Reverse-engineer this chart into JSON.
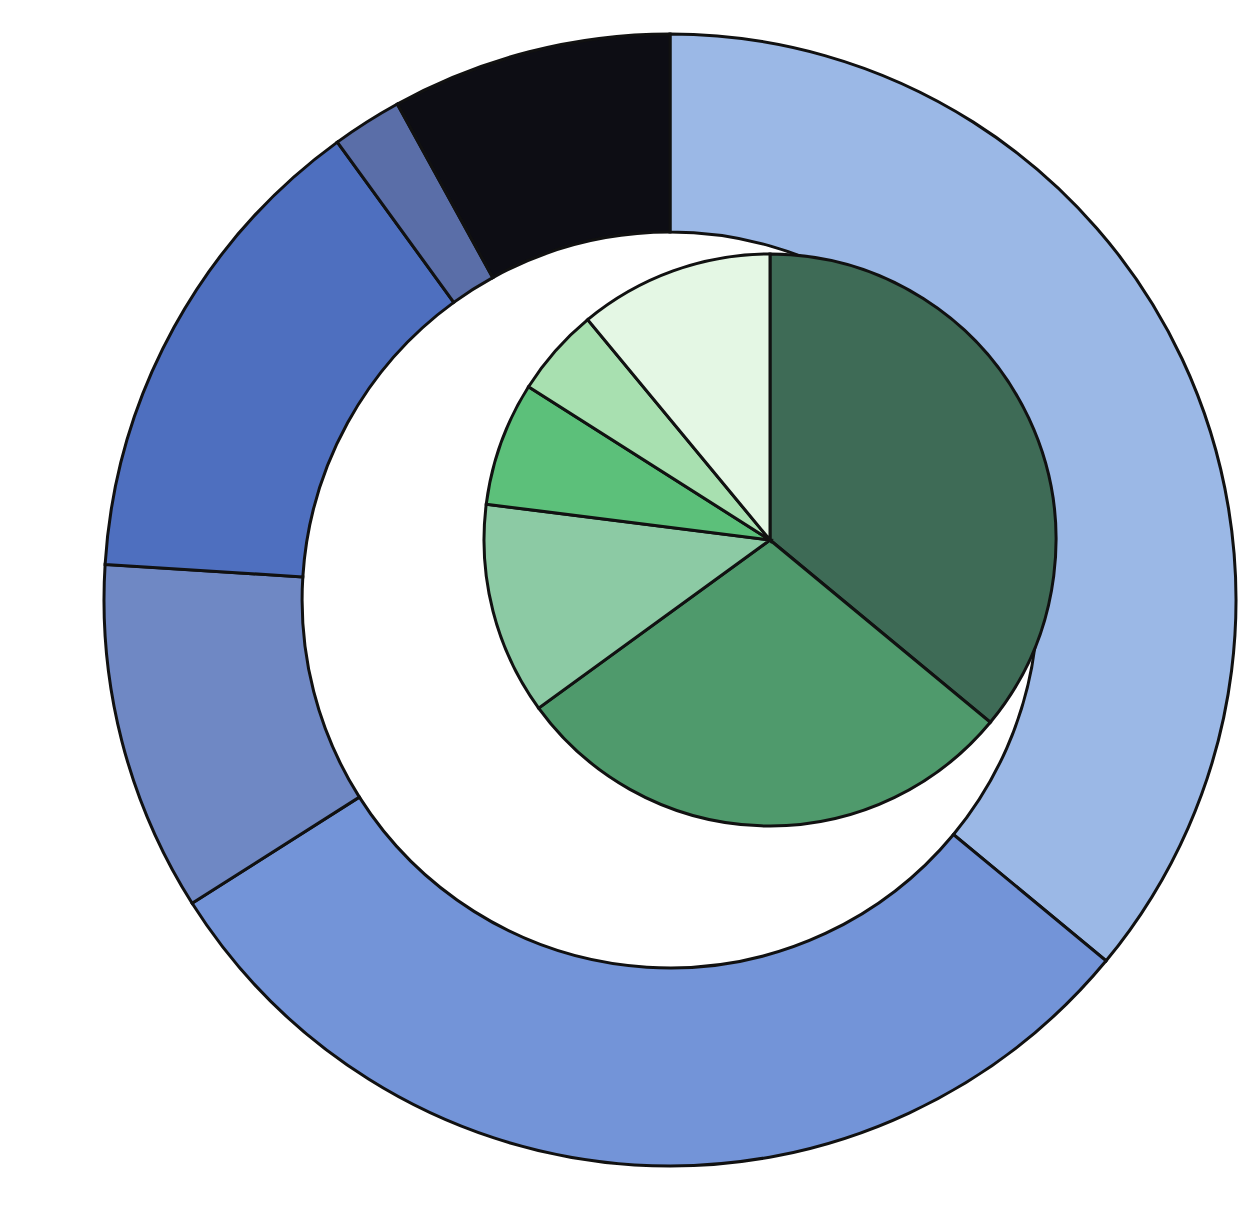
{
  "chart_data": [
    {
      "type": "donut",
      "categories": [
        null,
        null,
        null,
        null,
        null,
        null
      ],
      "values": [
        36,
        30,
        10,
        14,
        2,
        8
      ],
      "colors": [
        "#9bb8e6",
        "#7394d8",
        "#6f88c4",
        "#4e6fbf",
        "#5a6ea8",
        "#0d0d14"
      ]
    },
    {
      "type": "pie",
      "categories": [
        null,
        null,
        null,
        null,
        null,
        null
      ],
      "values": [
        36,
        29,
        12,
        7,
        5,
        11
      ],
      "colors": [
        "#3e6b56",
        "#4f9a6c",
        "#8ccaa4",
        "#5cc07a",
        "#a8e0b0",
        "#e4f7e4"
      ]
    }
  ]
}
